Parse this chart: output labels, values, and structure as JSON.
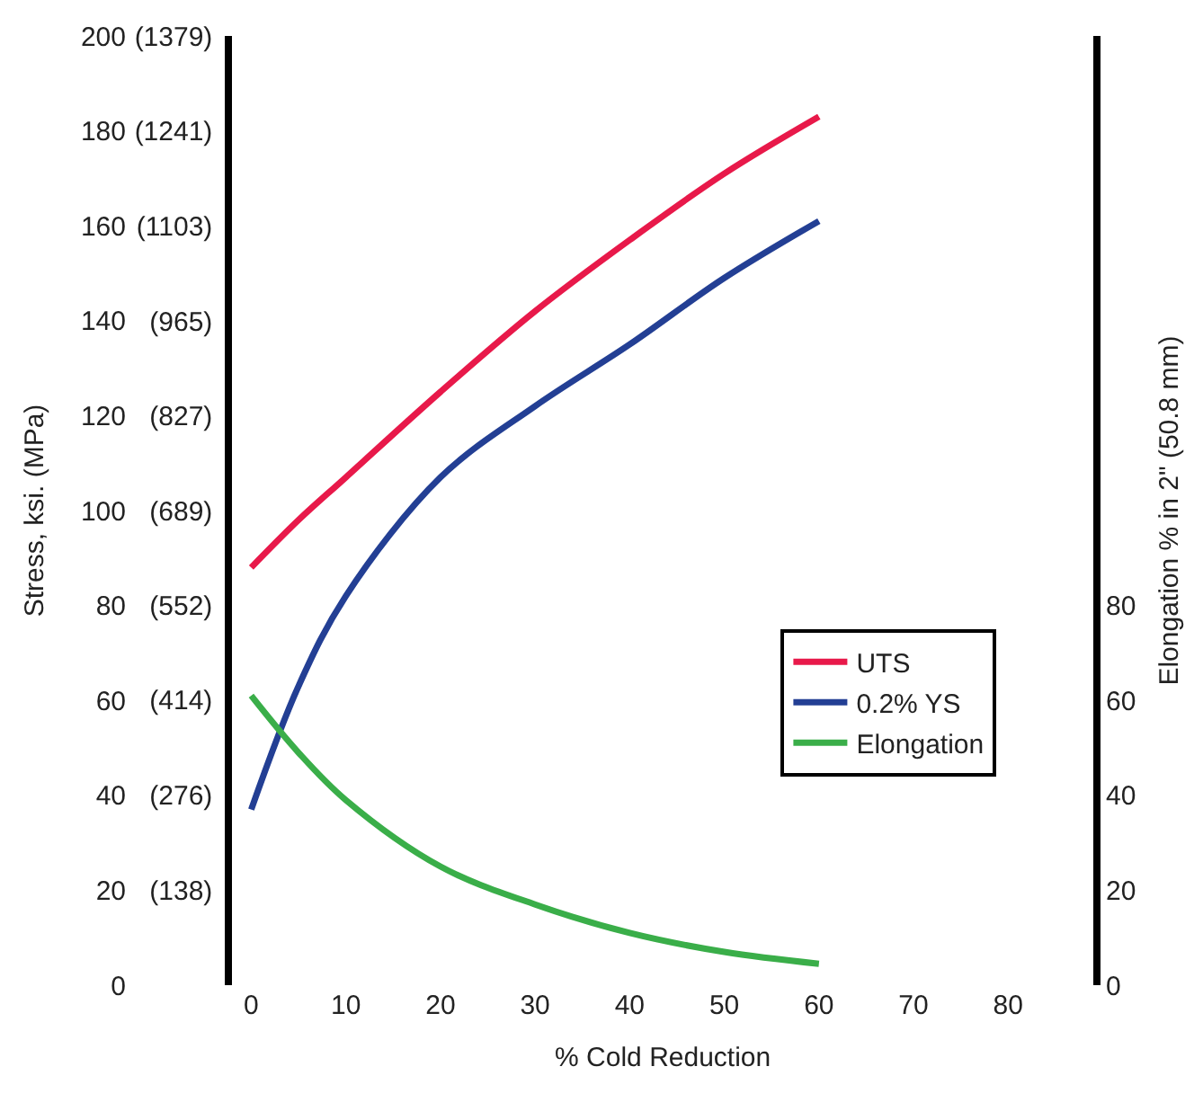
{
  "chart_data": {
    "type": "line",
    "xlabel": "% Cold Reduction",
    "ylabel": "Stress, ksi. (MPa)",
    "y2label": "Elongation % in 2\" (50.8 mm)",
    "x": [
      0,
      5,
      10,
      20,
      30,
      40,
      50,
      60
    ],
    "series": [
      {
        "name": "UTS",
        "color": "#e8194a",
        "values": [
          88,
          98,
          107,
          125,
          142,
          157,
          171,
          183
        ]
      },
      {
        "name": "0.2% YS",
        "color": "#233f94",
        "values": [
          37,
          63,
          82,
          107,
          122,
          135,
          149,
          161
        ]
      },
      {
        "name": "Elongation",
        "color": "#3aae49",
        "axis": "y2",
        "values": [
          61,
          49,
          39,
          25,
          17,
          11,
          7,
          4.5
        ]
      }
    ],
    "xlim": [
      -2,
      89
    ],
    "xticks": [
      0,
      10,
      20,
      30,
      40,
      50,
      60,
      70,
      80
    ],
    "ylim": [
      0,
      200
    ],
    "yticks": [
      0,
      20,
      40,
      60,
      80,
      100,
      120,
      140,
      160,
      180,
      200
    ],
    "y3lim": [
      0,
      1379
    ],
    "y3ticks": [
      {
        "value": 138,
        "label": "(138)"
      },
      {
        "value": 276,
        "label": "(276)"
      },
      {
        "value": 414,
        "label": "(414)"
      },
      {
        "value": 552,
        "label": "(552)"
      },
      {
        "value": 689,
        "label": "(689)"
      },
      {
        "value": 827,
        "label": "(827)"
      },
      {
        "value": 965,
        "label": "(965)"
      },
      {
        "value": 1103,
        "label": "(1103)"
      },
      {
        "value": 1241,
        "label": "(1241)"
      },
      {
        "value": 1379,
        "label": "(1379)"
      }
    ],
    "y2lim": [
      0,
      200
    ],
    "y2ticks": [
      0,
      20,
      40,
      60,
      80
    ],
    "legend": "right",
    "marker": "none",
    "line_style": "solid"
  }
}
